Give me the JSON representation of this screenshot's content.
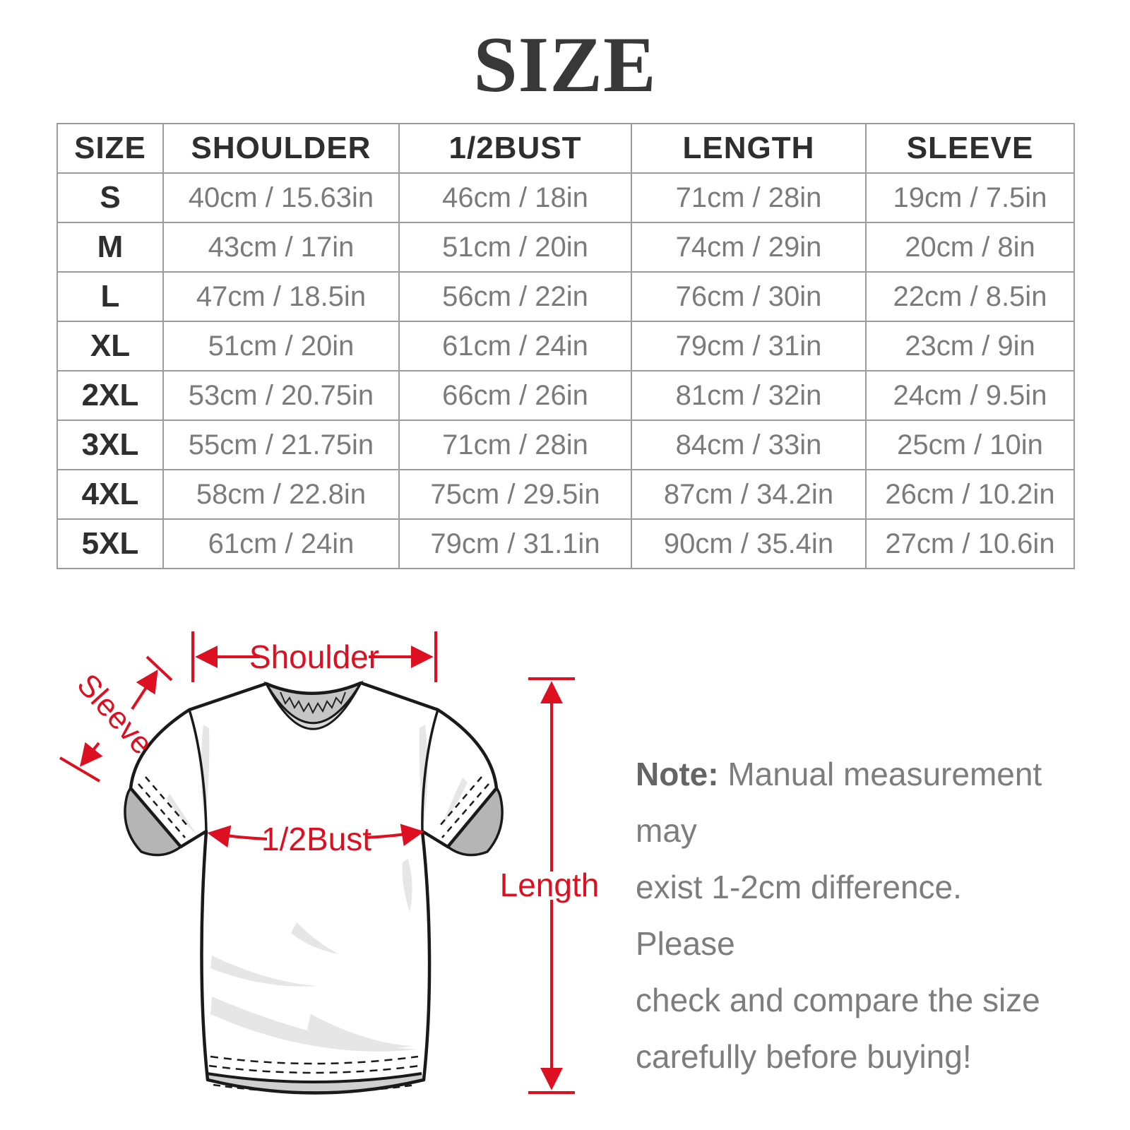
{
  "title": "SIZE",
  "table": {
    "headers": [
      "SIZE",
      "SHOULDER",
      "1/2BUST",
      "LENGTH",
      "SLEEVE"
    ],
    "rows": [
      [
        "S",
        "40cm / 15.63in",
        "46cm / 18in",
        "71cm / 28in",
        "19cm / 7.5in"
      ],
      [
        "M",
        "43cm / 17in",
        "51cm / 20in",
        "74cm / 29in",
        "20cm / 8in"
      ],
      [
        "L",
        "47cm / 18.5in",
        "56cm / 22in",
        "76cm / 30in",
        "22cm / 8.5in"
      ],
      [
        "XL",
        "51cm / 20in",
        "61cm / 24in",
        "79cm / 31in",
        "23cm / 9in"
      ],
      [
        "2XL",
        "53cm / 20.75in",
        "66cm / 26in",
        "81cm / 32in",
        "24cm / 9.5in"
      ],
      [
        "3XL",
        "55cm / 21.75in",
        "71cm / 28in",
        "84cm / 33in",
        "25cm / 10in"
      ],
      [
        "4XL",
        "58cm / 22.8in",
        "75cm / 29.5in",
        "87cm / 34.2in",
        "26cm / 10.2in"
      ],
      [
        "5XL",
        "61cm / 24in",
        "79cm / 31.1in",
        "90cm / 35.4in",
        "27cm / 10.6in"
      ]
    ]
  },
  "diagram": {
    "labels": {
      "shoulder": "Shoulder",
      "sleeve": "Sleeve",
      "bust": "1/2Bust",
      "length": "Length"
    },
    "accent_color": "#dc1021"
  },
  "note": {
    "prefix": "Note:",
    "line1": " Manual measurement may",
    "line2": "exist 1-2cm difference. Please",
    "line3": "check and compare the size",
    "line4": "carefully before buying!"
  }
}
